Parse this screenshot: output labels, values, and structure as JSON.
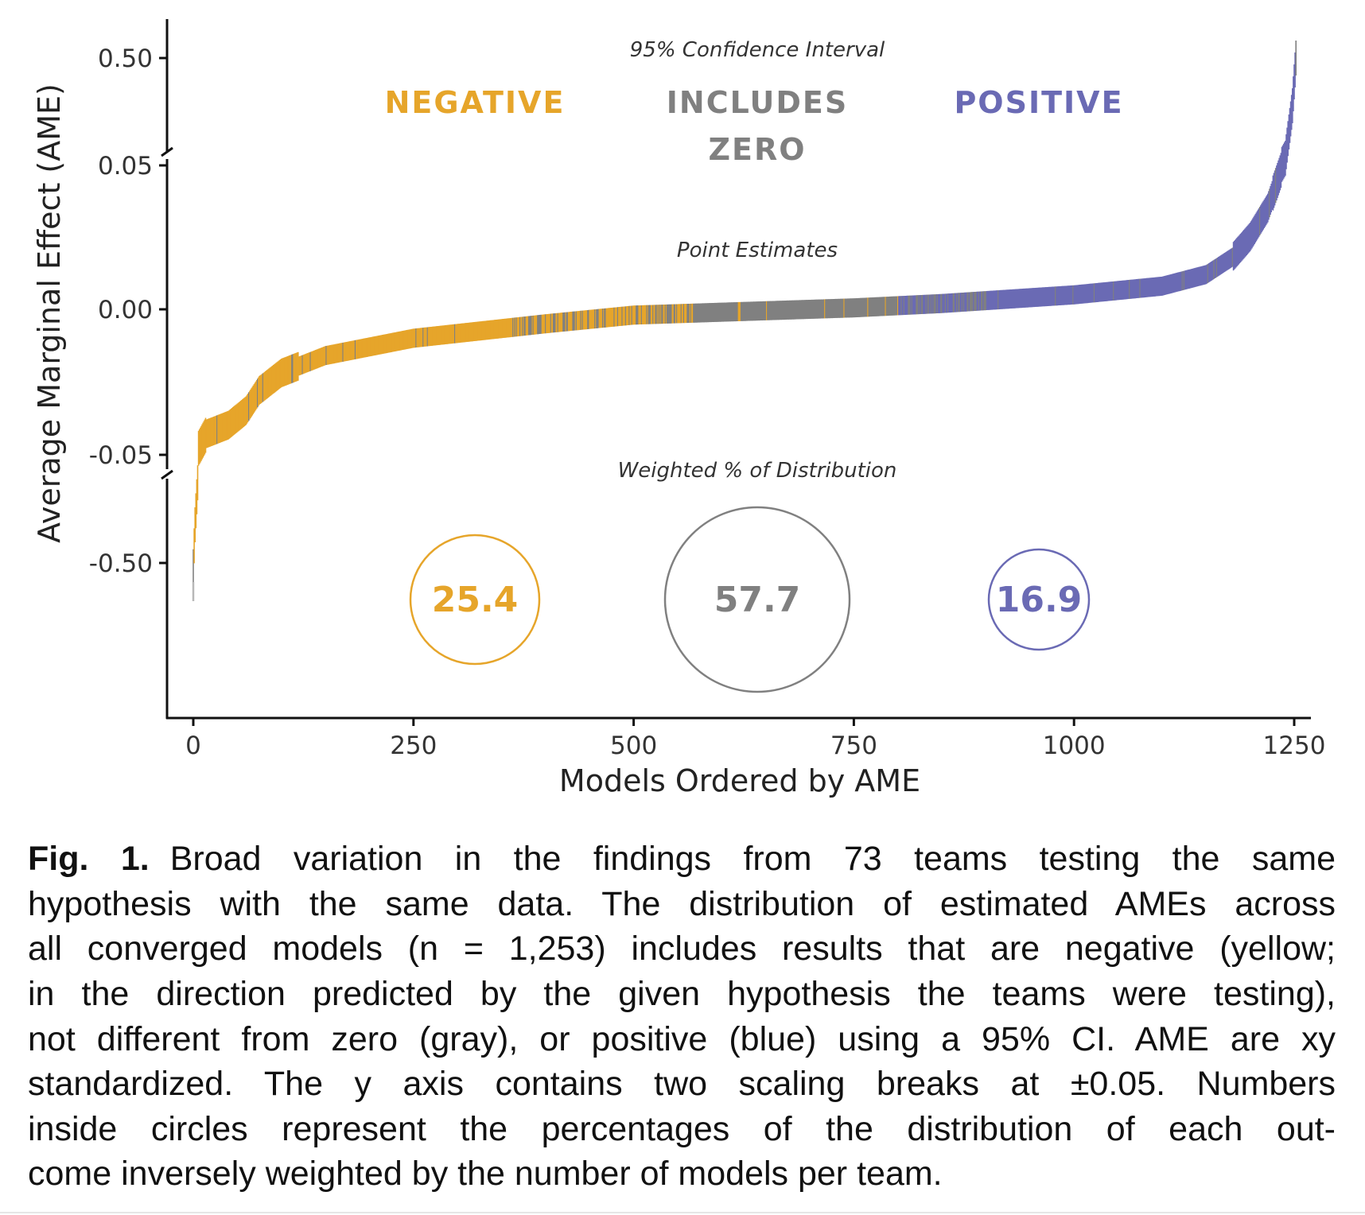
{
  "colors": {
    "negative": "#E6A52A",
    "zero": "#808080",
    "positive": "#6A6AB4",
    "axis": "#111111"
  },
  "chart_data": {
    "type": "scatter",
    "title": "",
    "xlabel": "Models Ordered by AME",
    "ylabel": "Average Marginal Effect (AME)",
    "n": 1253,
    "xlim": [
      0,
      1253
    ],
    "x_ticks": [
      "0",
      "250",
      "500",
      "750",
      "1000",
      "1250"
    ],
    "x_tick_values": [
      0,
      250,
      500,
      750,
      1000,
      1250
    ],
    "y_ticks": [
      "0.50",
      "0.05",
      "0.00",
      "-0.05",
      "-0.50"
    ],
    "y_tick_values": [
      0.5,
      0.05,
      0,
      -0.05,
      -0.5
    ],
    "y_breaks": [
      0.05,
      -0.05
    ],
    "curve_anchors": [
      [
        0,
        -0.52
      ],
      [
        2,
        -0.3
      ],
      [
        5,
        -0.08
      ],
      [
        6,
        -0.048
      ],
      [
        15,
        -0.043
      ],
      [
        40,
        -0.04
      ],
      [
        60,
        -0.035
      ],
      [
        75,
        -0.028
      ],
      [
        100,
        -0.022
      ],
      [
        150,
        -0.016
      ],
      [
        250,
        -0.01
      ],
      [
        400,
        -0.005
      ],
      [
        500,
        -0.002
      ],
      [
        650,
        -0.0005
      ],
      [
        750,
        0.0005
      ],
      [
        850,
        0.002
      ],
      [
        1000,
        0.005
      ],
      [
        1100,
        0.008
      ],
      [
        1150,
        0.012
      ],
      [
        1180,
        0.018
      ],
      [
        1200,
        0.025
      ],
      [
        1220,
        0.035
      ],
      [
        1235,
        0.048
      ],
      [
        1240,
        0.08
      ],
      [
        1248,
        0.3
      ],
      [
        1253,
        0.55
      ]
    ],
    "outlier": {
      "x": 0,
      "y": -0.65,
      "class": "zero"
    },
    "class_segments": [
      {
        "from": 0,
        "to": 360,
        "class": "negative",
        "other": "zero",
        "other_share": 0.05
      },
      {
        "from": 360,
        "to": 570,
        "class": "negative",
        "other": "zero",
        "other_share": 0.45
      },
      {
        "from": 570,
        "to": 800,
        "class": "zero",
        "other": "negative",
        "other_share": 0.04
      },
      {
        "from": 800,
        "to": 900,
        "class": "positive",
        "other": "zero",
        "other_share": 0.4
      },
      {
        "from": 900,
        "to": 1253,
        "class": "positive",
        "other": "zero",
        "other_share": 0.06
      }
    ],
    "section_titles": {
      "ci": "95% Confidence Interval",
      "points": "Point Estimates",
      "weighted": "Weighted % of Distribution"
    },
    "legend": [
      {
        "label": "NEGATIVE",
        "label2": "",
        "class": "negative",
        "weighted_pct": "25.4"
      },
      {
        "label": "INCLUDES",
        "label2": "ZERO",
        "class": "zero",
        "weighted_pct": "57.7"
      },
      {
        "label": "POSITIVE",
        "label2": "",
        "class": "positive",
        "weighted_pct": "16.9"
      }
    ]
  },
  "caption": {
    "label": "Fig. 1.",
    "lines": [
      "Broad variation in the findings from 73 teams testing the same",
      "hypothesis with the same data. The distribution of estimated AMEs across",
      "all converged models (n = 1,253) includes results that are negative (yellow;",
      "in the direction predicted by the given hypothesis the teams were testing),",
      "not different from zero (gray), or positive (blue) using a 95% CI. AME are xy",
      "standardized. The y axis contains two scaling breaks at ±0.05. Numbers",
      "inside circles represent the percentages of the distribution of each out-",
      "come inversely weighted by the number of models per team."
    ]
  }
}
